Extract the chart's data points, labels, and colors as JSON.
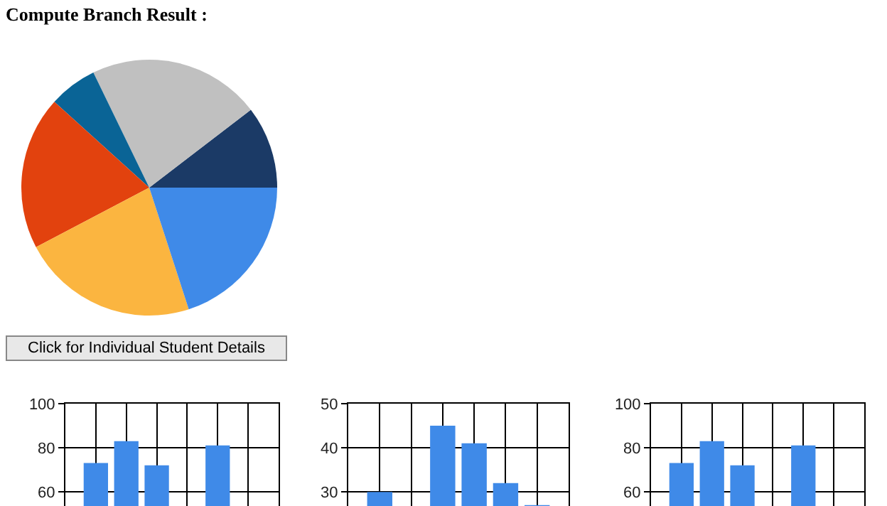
{
  "chart_data": [
    {
      "type": "pie",
      "title": "Compute Branch Result :",
      "categories": [
        null,
        null,
        null,
        null,
        null,
        null
      ],
      "values": [
        10.4,
        21.8,
        6.1,
        19.4,
        22.3,
        20.0
      ],
      "colors": [
        "#1b3a66",
        "#c0c0c0",
        "#0a6496",
        "#e2420e",
        "#fbb540",
        "#3f8ae8"
      ],
      "annotations": [
        "Click for Individual Student Details"
      ],
      "legend": false
    },
    {
      "type": "bar",
      "categories": [
        null,
        null,
        null,
        null,
        null,
        null
      ],
      "values": [
        73,
        83,
        72,
        null,
        81,
        null
      ],
      "color": "#3f8ae8",
      "ylim": [
        53.5,
        100
      ],
      "yticks": [
        60,
        80,
        100
      ],
      "grid": true,
      "tick_labels": "y"
    },
    {
      "type": "bar",
      "categories": [
        null,
        null,
        null,
        null,
        null,
        null
      ],
      "values": [
        30,
        null,
        45,
        41,
        32,
        27
      ],
      "color": "#3f8ae8",
      "ylim": [
        26.8,
        50
      ],
      "yticks": [
        30,
        40,
        50
      ],
      "grid": true,
      "tick_labels": "y"
    },
    {
      "type": "bar",
      "categories": [
        null,
        null,
        null,
        null,
        null,
        null
      ],
      "values": [
        73,
        83,
        72,
        null,
        81,
        null
      ],
      "color": "#3f8ae8",
      "ylim": [
        53.5,
        100
      ],
      "yticks": [
        60,
        80,
        100
      ],
      "grid": true,
      "tick_labels": "y"
    }
  ]
}
